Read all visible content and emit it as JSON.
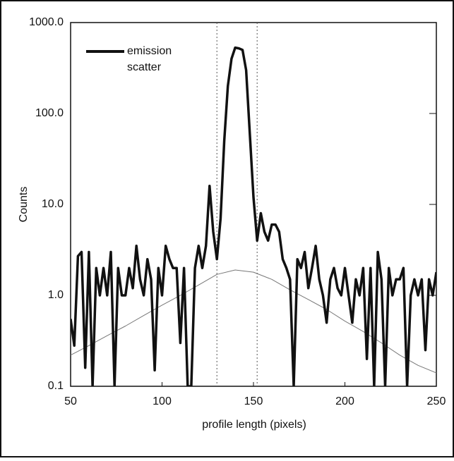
{
  "chart_data": {
    "type": "line",
    "xlabel": "profile length (pixels)",
    "ylabel": "Counts",
    "xlim": [
      50,
      250
    ],
    "xticks": [
      50,
      100,
      150,
      200,
      250
    ],
    "ylim": [
      0.1,
      1000
    ],
    "log_y": true,
    "yticks": [
      {
        "value": 1000,
        "label": "1000.0"
      },
      {
        "value": 100,
        "label": "100.0"
      },
      {
        "value": 10,
        "label": "10.0"
      },
      {
        "value": 1,
        "label": "1.0"
      },
      0.1
    ],
    "vlines": [
      130,
      152
    ],
    "legend": "upper-left",
    "series": [
      {
        "name": "emission",
        "color": "#111111",
        "x": [
          50,
          52,
          54,
          56,
          58,
          60,
          62,
          64,
          66,
          68,
          70,
          72,
          74,
          76,
          78,
          80,
          82,
          84,
          86,
          88,
          90,
          92,
          94,
          96,
          98,
          100,
          102,
          104,
          106,
          108,
          110,
          112,
          114,
          116,
          118,
          120,
          122,
          124,
          126,
          128,
          130,
          132,
          134,
          136,
          138,
          140,
          142,
          144,
          146,
          148,
          150,
          152,
          154,
          156,
          158,
          160,
          162,
          164,
          166,
          168,
          170,
          172,
          174,
          176,
          178,
          180,
          182,
          184,
          186,
          188,
          190,
          192,
          194,
          196,
          198,
          200,
          202,
          204,
          206,
          208,
          210,
          212,
          214,
          216,
          218,
          220,
          222,
          224,
          226,
          228,
          230,
          232,
          234,
          236,
          238,
          240,
          242,
          244,
          246,
          248,
          250
        ],
        "values": [
          0.55,
          0.28,
          2.7,
          3,
          0.16,
          3,
          0.1,
          2,
          1,
          2,
          1,
          3,
          0.1,
          2,
          1,
          1,
          2,
          1.2,
          3.5,
          1.5,
          1,
          2.5,
          1.5,
          0.15,
          2,
          1,
          3.5,
          2.5,
          2,
          2,
          0.3,
          2,
          0.1,
          0.1,
          2,
          3.5,
          2,
          3.5,
          16,
          5,
          2.5,
          7,
          50,
          200,
          400,
          530,
          520,
          500,
          300,
          60,
          12,
          4,
          8,
          5,
          4,
          6,
          6,
          5,
          2.5,
          2,
          1.5,
          0.1,
          2.5,
          2,
          3,
          1.2,
          2,
          3.5,
          1.5,
          1,
          0.5,
          1.5,
          2,
          1.2,
          1,
          2,
          1,
          0.5,
          1.5,
          1,
          2,
          0.2,
          2,
          0.1,
          3,
          1.5,
          0.1,
          2,
          1,
          1.5,
          1.5,
          2,
          0.1,
          1,
          1.5,
          1,
          1.5,
          0.25,
          1.5,
          1,
          1.8
        ]
      },
      {
        "name": "scatter",
        "color": "#777777",
        "x": [
          50,
          60,
          70,
          80,
          90,
          100,
          110,
          120,
          130,
          140,
          150,
          160,
          170,
          180,
          190,
          200,
          210,
          220,
          230,
          240,
          250
        ],
        "values": [
          0.22,
          0.28,
          0.36,
          0.46,
          0.6,
          0.78,
          1.0,
          1.3,
          1.7,
          1.9,
          1.8,
          1.5,
          1.15,
          0.9,
          0.7,
          0.52,
          0.4,
          0.3,
          0.22,
          0.17,
          0.14
        ]
      }
    ]
  }
}
